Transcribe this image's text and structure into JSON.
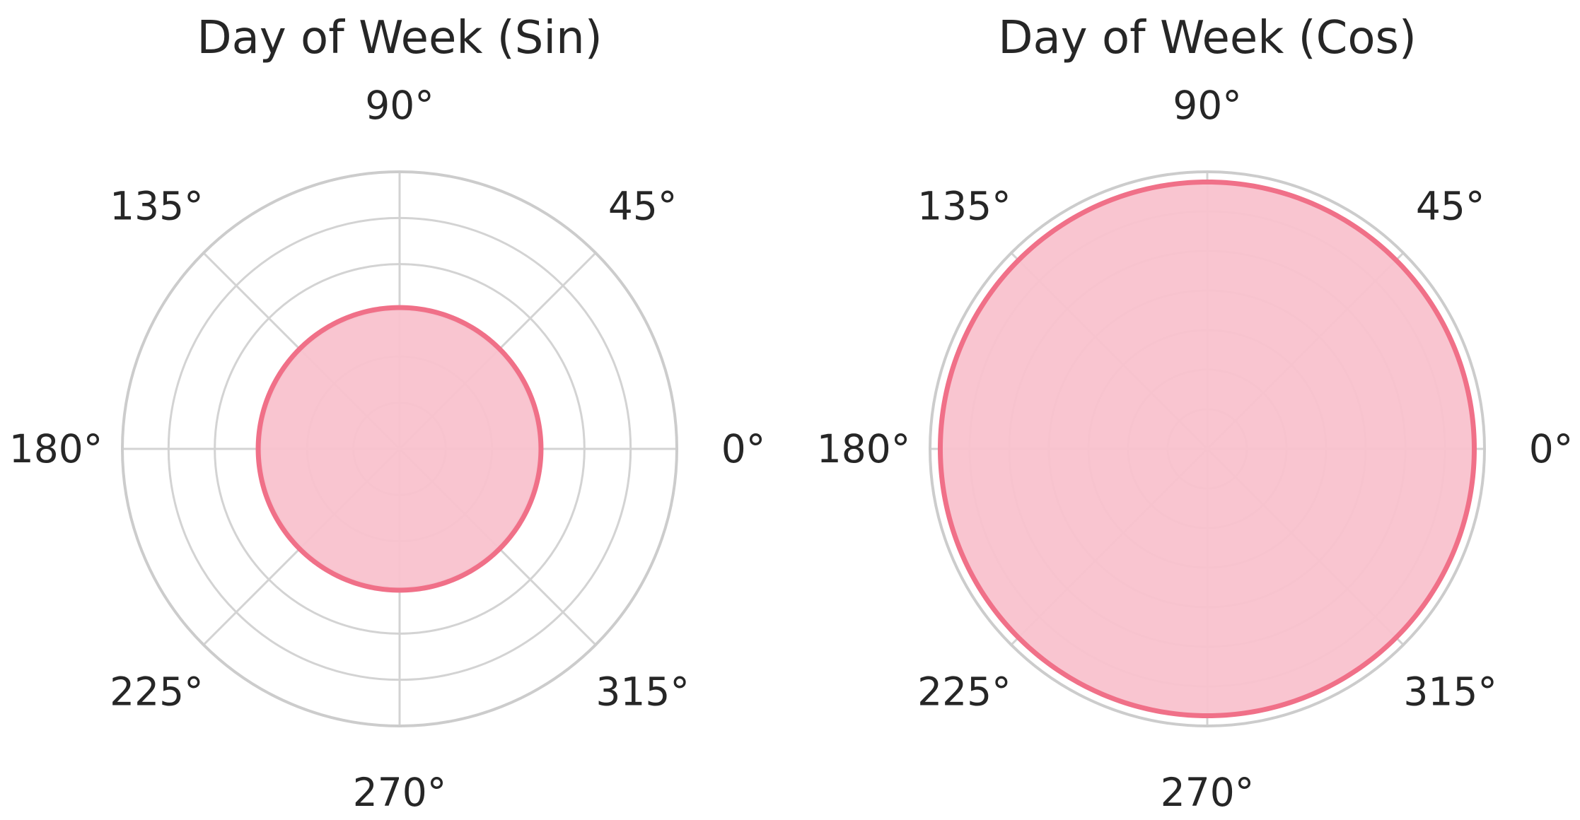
{
  "chart_data": [
    {
      "type": "line",
      "subtype": "polar",
      "title": "Day of Week (Sin)",
      "theta_tick_labels": [
        "0°",
        "45°",
        "90°",
        "135°",
        "180°",
        "225°",
        "270°",
        "315°"
      ],
      "theta_ticks_deg": [
        0,
        45,
        90,
        135,
        180,
        225,
        270,
        315
      ],
      "radial_gridlines": 5,
      "radial_tick_labels": [],
      "series": [
        {
          "filled": true,
          "color": "#f07088",
          "fill_color": "#f9c2ce",
          "theta_deg": [
            0,
            360
          ],
          "r_fraction_of_max": [
            0.51,
            0.51
          ]
        }
      ],
      "grid": true,
      "legend": "none"
    },
    {
      "type": "line",
      "subtype": "polar",
      "title": "Day of Week (Cos)",
      "theta_tick_labels": [
        "0°",
        "45°",
        "90°",
        "135°",
        "180°",
        "225°",
        "270°",
        "315°"
      ],
      "theta_ticks_deg": [
        0,
        45,
        90,
        135,
        180,
        225,
        270,
        315
      ],
      "radial_gridlines": 6,
      "radial_tick_labels": [],
      "series": [
        {
          "filled": true,
          "color": "#f07088",
          "fill_color": "#f9c2ce",
          "theta_deg": [
            0,
            360
          ],
          "r_fraction_of_max": [
            0.963,
            0.963
          ]
        }
      ],
      "grid": true,
      "legend": "none"
    }
  ]
}
